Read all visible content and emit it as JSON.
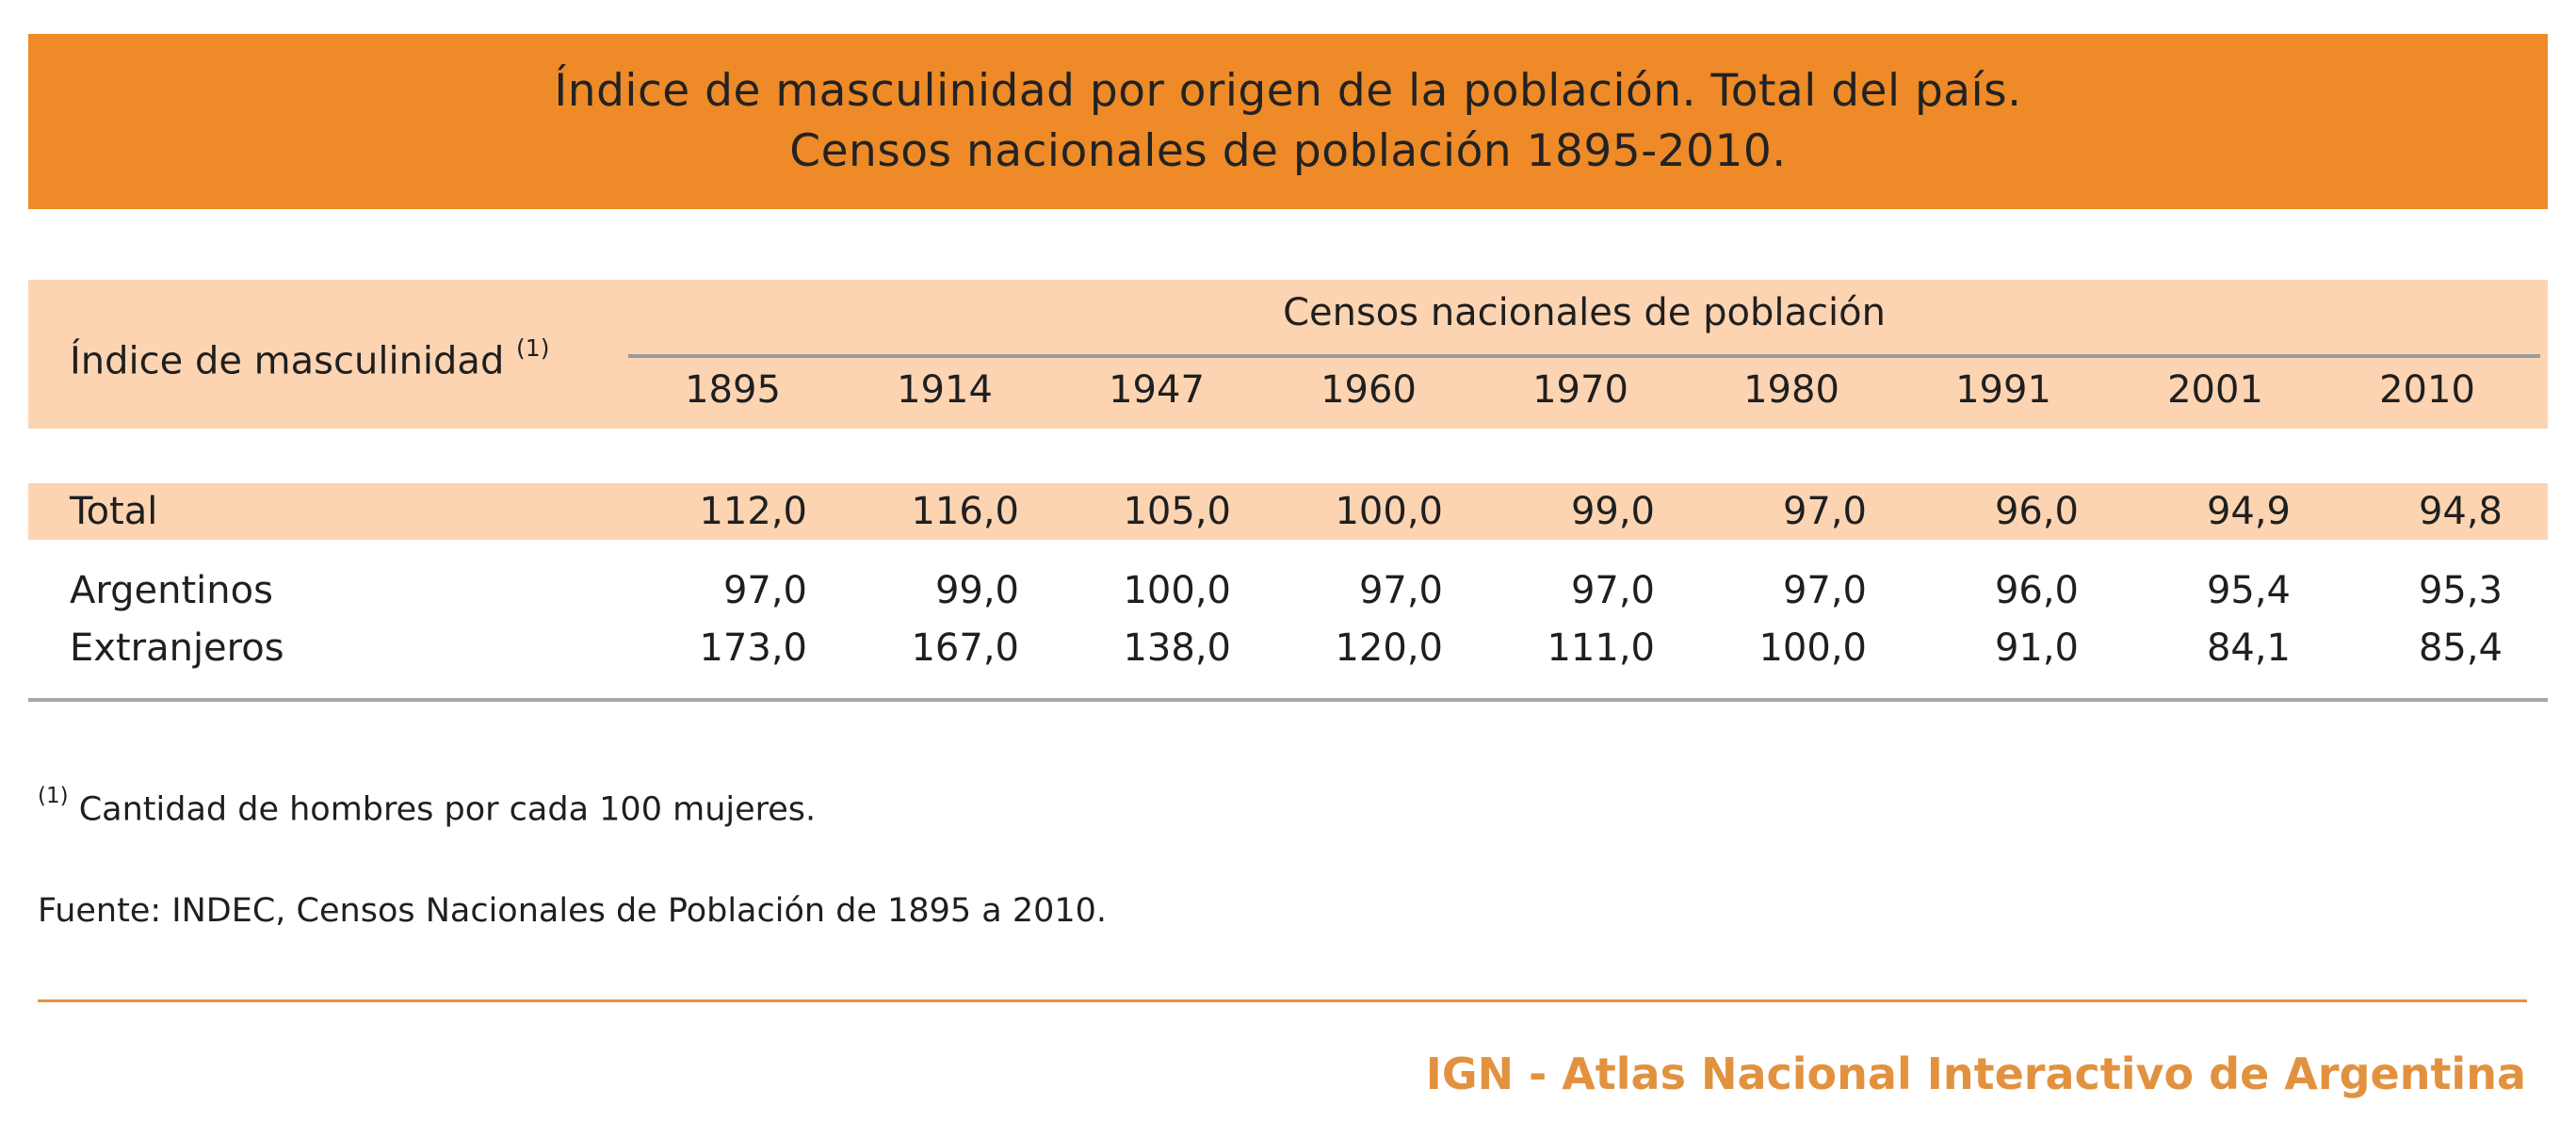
{
  "title": {
    "line1": "Índice de masculinidad por origen de la población. Total del país.",
    "line2": "Censos nacionales de población 1895-2010."
  },
  "table": {
    "row_header": "Índice de masculinidad",
    "row_header_note": "(1)",
    "group_header": "Censos nacionales de población",
    "years": [
      "1895",
      "1914",
      "1947",
      "1960",
      "1970",
      "1980",
      "1991",
      "2001",
      "2010"
    ],
    "rows": [
      {
        "label": "Total",
        "values": [
          "112,0",
          "116,0",
          "105,0",
          "100,0",
          "99,0",
          "97,0",
          "96,0",
          "94,9",
          "94,8"
        ]
      },
      {
        "label": "Argentinos",
        "values": [
          "97,0",
          "99,0",
          "100,0",
          "97,0",
          "97,0",
          "97,0",
          "96,0",
          "95,4",
          "95,3"
        ]
      },
      {
        "label": "Extranjeros",
        "values": [
          "173,0",
          "167,0",
          "138,0",
          "120,0",
          "111,0",
          "100,0",
          "91,0",
          "84,1",
          "85,4"
        ]
      }
    ]
  },
  "footnote": {
    "marker": "(1)",
    "text": " Cantidad de hombres por cada 100 mujeres."
  },
  "source": "Fuente: INDEC, Censos Nacionales de Población de 1895 a 2010.",
  "footer": {
    "credit": "IGN - Atlas Nacional Interactivo de Argentina"
  },
  "colors": {
    "banner": "#ee8a27",
    "band": "#fcd4b2",
    "footer_accent": "#e2923f"
  }
}
